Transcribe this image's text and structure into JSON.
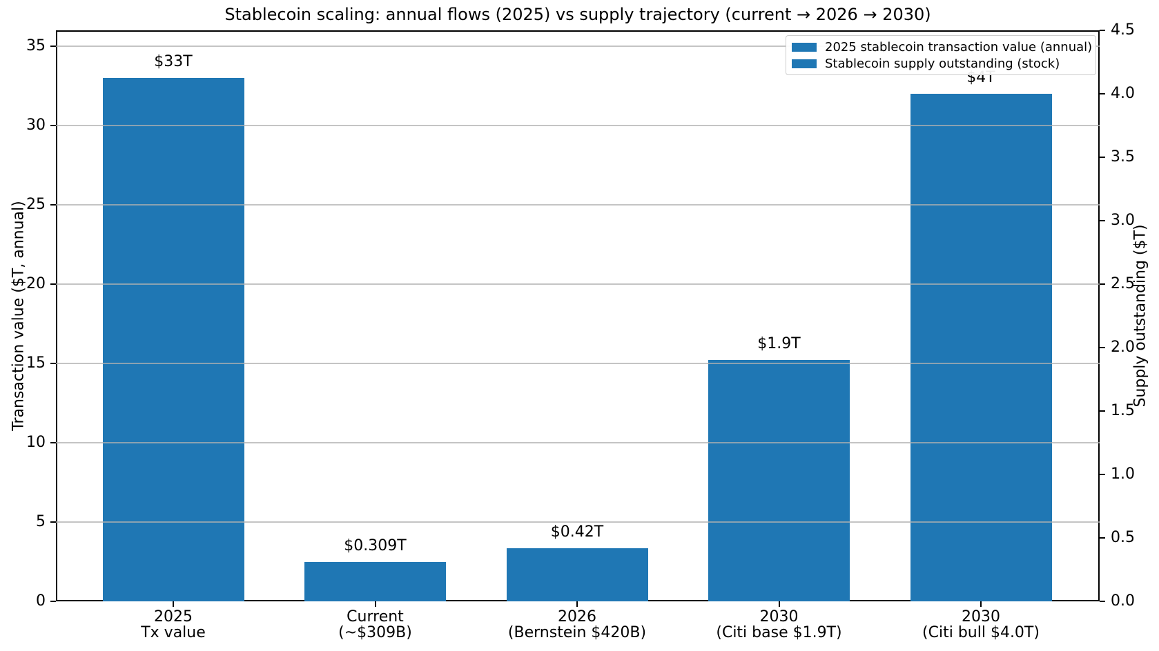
{
  "chart_data": {
    "type": "bar",
    "title": "Stablecoin scaling: annual flows (2025) vs supply trajectory (current → 2026 → 2030)",
    "background": "#ffffff",
    "bar_color": "#1f77b4",
    "grid": true,
    "legend_position": "upper right",
    "left_axis": {
      "label": "Transaction value ($T, annual)",
      "range": [
        0,
        36
      ],
      "ticks": [
        "0",
        "5",
        "10",
        "15",
        "20",
        "25",
        "30",
        "35"
      ]
    },
    "right_axis": {
      "label": "Supply outstanding ($T)",
      "range": [
        0,
        4.5
      ],
      "ticks": [
        "0.0",
        "0.5",
        "1.0",
        "1.5",
        "2.0",
        "2.5",
        "3.0",
        "3.5",
        "4.0",
        "4.5"
      ]
    },
    "categories": [
      [
        "2025",
        "Tx value"
      ],
      [
        "Current",
        "(~$309B)"
      ],
      [
        "2026",
        "(Bernstein $420B)"
      ],
      [
        "2030",
        "(Citi base $1.9T)"
      ],
      [
        "2030",
        "(Citi bull $4.0T)"
      ]
    ],
    "bars": [
      {
        "label": "$33T",
        "value": 33,
        "axis": "left"
      },
      {
        "label": "$0.309T",
        "value": 0.309,
        "axis": "right"
      },
      {
        "label": "$0.42T",
        "value": 0.42,
        "axis": "right"
      },
      {
        "label": "$1.9T",
        "value": 1.9,
        "axis": "right"
      },
      {
        "label": "$4T",
        "value": 4.0,
        "axis": "right"
      }
    ],
    "legend": [
      {
        "label": "2025 stablecoin transaction value (annual)",
        "color": "#1f77b4"
      },
      {
        "label": "Stablecoin supply outstanding (stock)",
        "color": "#1f77b4"
      }
    ]
  }
}
